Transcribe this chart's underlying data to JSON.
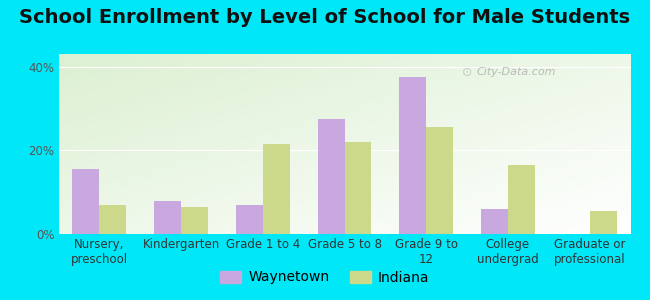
{
  "title": "School Enrollment by Level of School for Male Students",
  "categories": [
    "Nursery,\npreschool",
    "Kindergarten",
    "Grade 1 to 4",
    "Grade 5 to 8",
    "Grade 9 to\n12",
    "College\nundergrad",
    "Graduate or\nprofessional"
  ],
  "waynetown": [
    15.5,
    8.0,
    7.0,
    27.5,
    37.5,
    6.0,
    0.0
  ],
  "indiana": [
    7.0,
    6.5,
    21.5,
    22.0,
    25.5,
    16.5,
    5.5
  ],
  "waynetown_color": "#c9a8e0",
  "indiana_color": "#ccd98a",
  "background_outer": "#00e8f8",
  "ylabel_ticks": [
    "0%",
    "20%",
    "40%"
  ],
  "ytick_vals": [
    0,
    20,
    40
  ],
  "ylim": [
    0,
    43
  ],
  "legend_waynetown": "Waynetown",
  "legend_indiana": "Indiana",
  "title_fontsize": 14,
  "tick_fontsize": 8.5,
  "legend_fontsize": 10,
  "bar_width": 0.33
}
